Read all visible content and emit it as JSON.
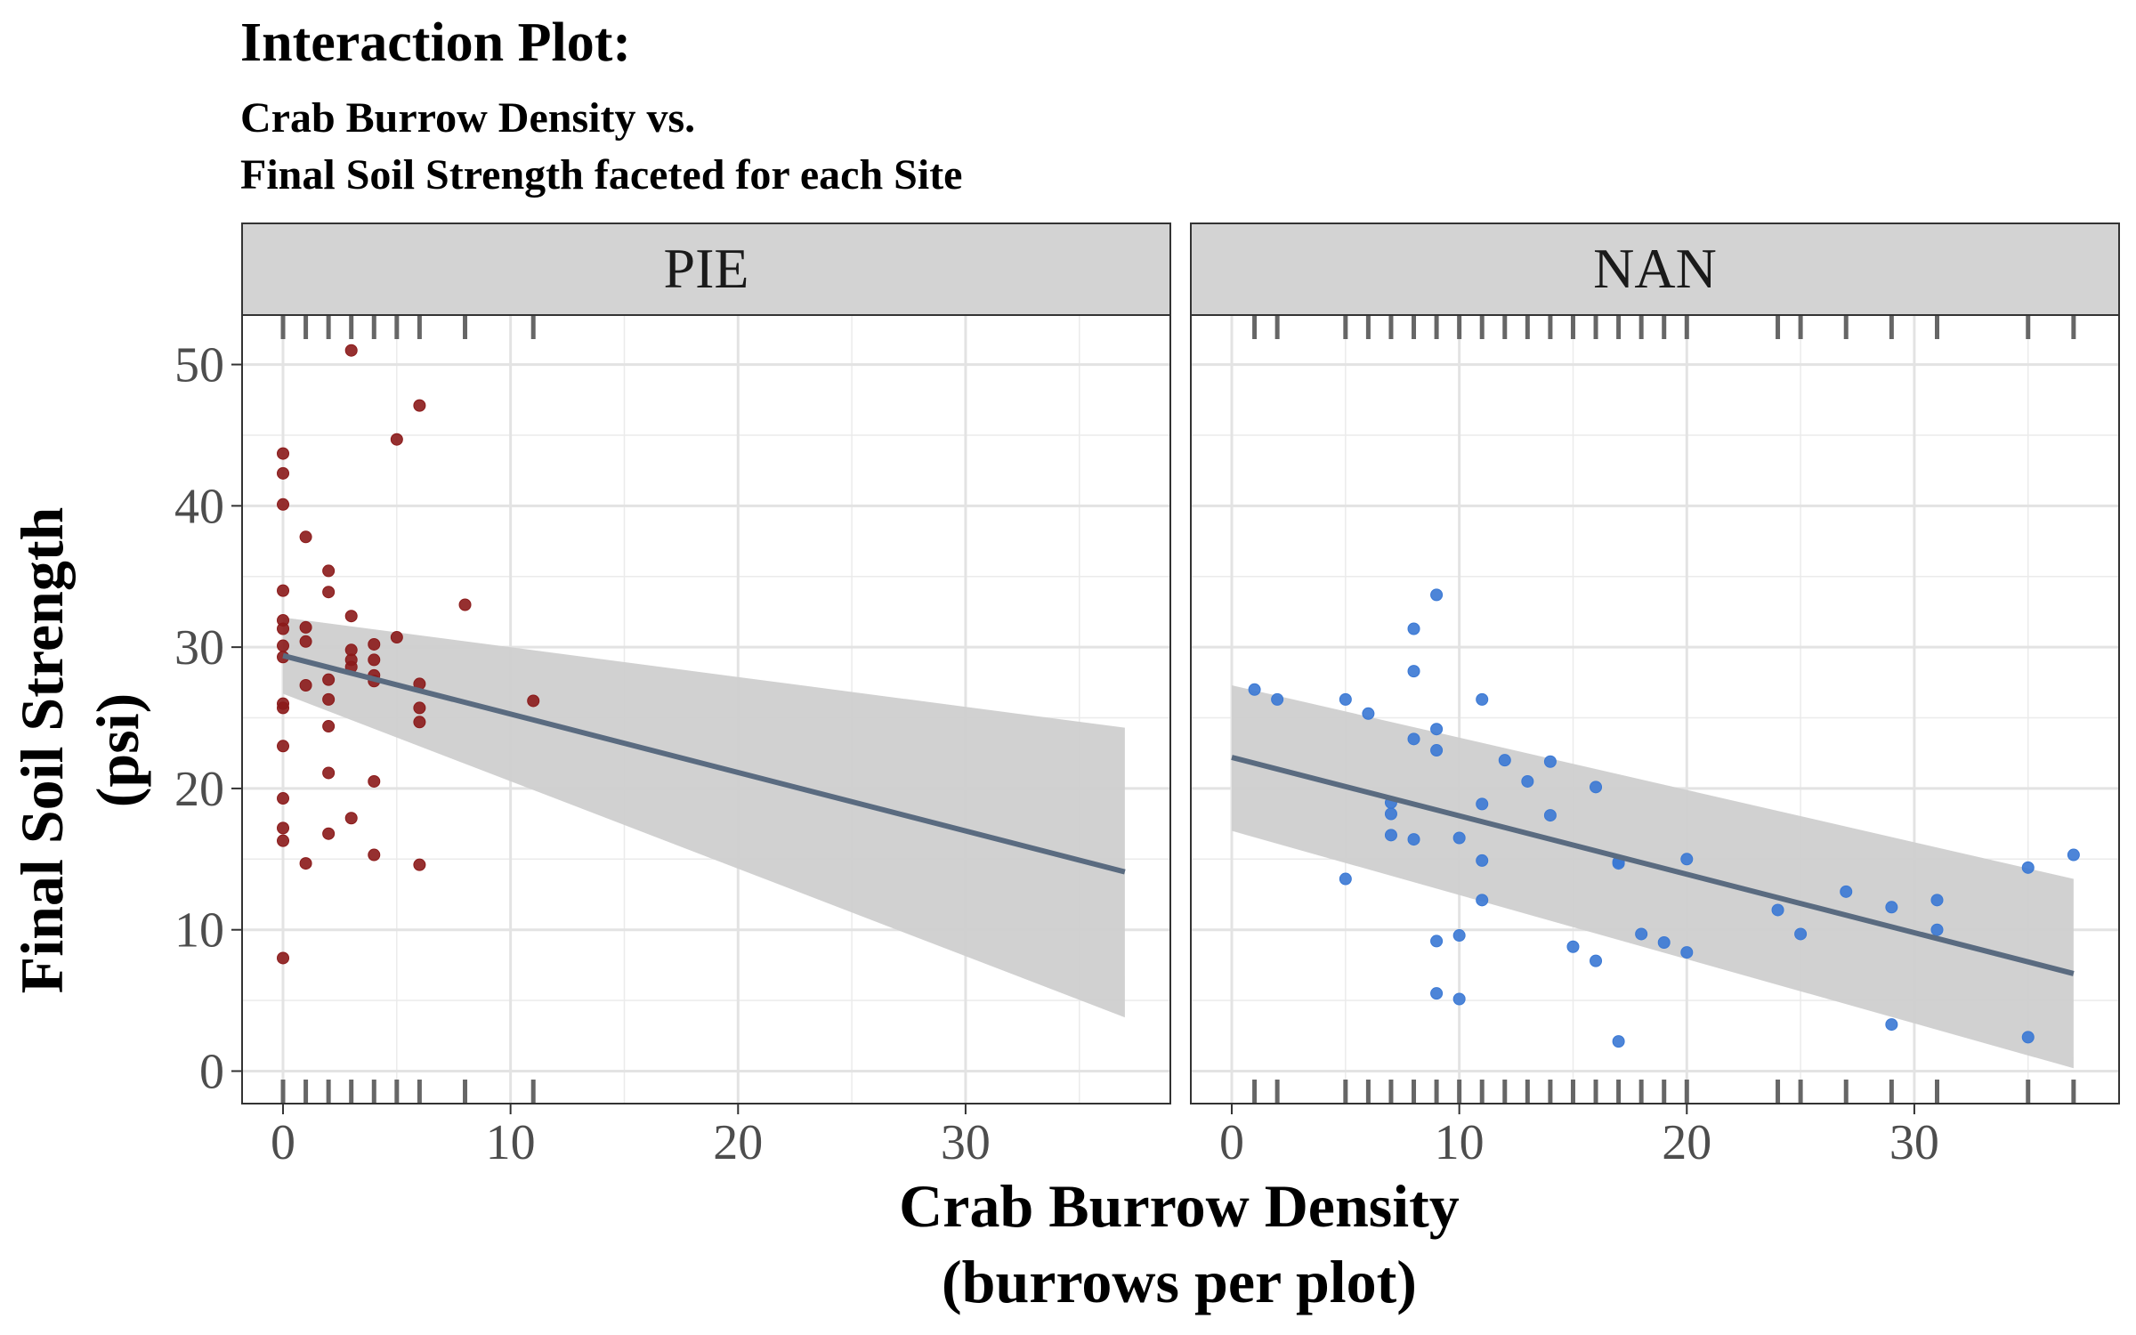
{
  "title": "Interaction Plot:",
  "subtitle_lines": [
    "Crab Burrow Density vs.",
    "Final Soil Strength faceted for each Site"
  ],
  "chart_data": {
    "type": "scatter",
    "xlabel_lines": [
      "Crab Burrow Density",
      "(burrows per plot)"
    ],
    "ylabel_lines": [
      "Final Soil Strength",
      "(psi)"
    ],
    "xlim": [
      -1.8,
      39
    ],
    "ylim": [
      -2.3,
      53.5
    ],
    "x_ticks": [
      0,
      10,
      20,
      30
    ],
    "y_ticks": [
      0,
      10,
      20,
      30,
      40,
      50
    ],
    "grid": true,
    "legend": "none",
    "colors": {
      "PIE": "#8b1a1a",
      "NAN": "#3a78d4",
      "fit_line": "#5a6b80",
      "ribbon": "#cfcfcf",
      "strip_bg": "#d3d3d3",
      "rug": "#666666"
    },
    "facets": [
      {
        "name": "PIE",
        "fit": {
          "x": [
            0,
            37
          ],
          "y": [
            29.4,
            14.1
          ],
          "lower": [
            26.7,
            3.8
          ],
          "upper": [
            32.1,
            24.3
          ]
        },
        "points": [
          {
            "x": 0,
            "y": 43.7
          },
          {
            "x": 0,
            "y": 42.3
          },
          {
            "x": 0,
            "y": 40.1
          },
          {
            "x": 0,
            "y": 34.0
          },
          {
            "x": 0,
            "y": 31.9
          },
          {
            "x": 0,
            "y": 31.3
          },
          {
            "x": 0,
            "y": 30.1
          },
          {
            "x": 0,
            "y": 29.3
          },
          {
            "x": 0,
            "y": 26.0
          },
          {
            "x": 0,
            "y": 25.7
          },
          {
            "x": 0,
            "y": 23.0
          },
          {
            "x": 0,
            "y": 19.3
          },
          {
            "x": 0,
            "y": 17.2
          },
          {
            "x": 0,
            "y": 16.3
          },
          {
            "x": 0,
            "y": 8.0
          },
          {
            "x": 1,
            "y": 37.8
          },
          {
            "x": 1,
            "y": 31.4
          },
          {
            "x": 1,
            "y": 30.4
          },
          {
            "x": 1,
            "y": 27.3
          },
          {
            "x": 1,
            "y": 14.7
          },
          {
            "x": 2,
            "y": 35.4
          },
          {
            "x": 2,
            "y": 33.9
          },
          {
            "x": 2,
            "y": 27.7
          },
          {
            "x": 2,
            "y": 26.3
          },
          {
            "x": 2,
            "y": 24.4
          },
          {
            "x": 2,
            "y": 21.1
          },
          {
            "x": 2,
            "y": 16.8
          },
          {
            "x": 3,
            "y": 51.0
          },
          {
            "x": 3,
            "y": 32.2
          },
          {
            "x": 3,
            "y": 29.8
          },
          {
            "x": 3,
            "y": 29.1
          },
          {
            "x": 3,
            "y": 28.6
          },
          {
            "x": 3,
            "y": 17.9
          },
          {
            "x": 4,
            "y": 30.2
          },
          {
            "x": 4,
            "y": 29.1
          },
          {
            "x": 4,
            "y": 28.0
          },
          {
            "x": 4,
            "y": 27.6
          },
          {
            "x": 4,
            "y": 20.5
          },
          {
            "x": 4,
            "y": 15.3
          },
          {
            "x": 5,
            "y": 44.7
          },
          {
            "x": 5,
            "y": 30.7
          },
          {
            "x": 6,
            "y": 47.1
          },
          {
            "x": 6,
            "y": 27.4
          },
          {
            "x": 6,
            "y": 25.7
          },
          {
            "x": 6,
            "y": 24.7
          },
          {
            "x": 6,
            "y": 14.6
          },
          {
            "x": 8,
            "y": 33.0
          },
          {
            "x": 11,
            "y": 26.2
          }
        ]
      },
      {
        "name": "NAN",
        "fit": {
          "x": [
            0,
            37
          ],
          "y": [
            22.2,
            6.9
          ],
          "lower": [
            17.0,
            0.2
          ],
          "upper": [
            27.3,
            13.6
          ]
        },
        "points": [
          {
            "x": 1,
            "y": 27.0
          },
          {
            "x": 2,
            "y": 26.3
          },
          {
            "x": 5,
            "y": 26.3
          },
          {
            "x": 5,
            "y": 13.6
          },
          {
            "x": 6,
            "y": 25.3
          },
          {
            "x": 7,
            "y": 19.0
          },
          {
            "x": 7,
            "y": 18.2
          },
          {
            "x": 7,
            "y": 16.7
          },
          {
            "x": 8,
            "y": 31.3
          },
          {
            "x": 8,
            "y": 28.3
          },
          {
            "x": 8,
            "y": 23.5
          },
          {
            "x": 8,
            "y": 16.4
          },
          {
            "x": 9,
            "y": 33.7
          },
          {
            "x": 9,
            "y": 24.2
          },
          {
            "x": 9,
            "y": 22.7
          },
          {
            "x": 9,
            "y": 9.2
          },
          {
            "x": 9,
            "y": 5.5
          },
          {
            "x": 10,
            "y": 16.5
          },
          {
            "x": 10,
            "y": 9.6
          },
          {
            "x": 10,
            "y": 5.1
          },
          {
            "x": 11,
            "y": 26.3
          },
          {
            "x": 11,
            "y": 18.9
          },
          {
            "x": 11,
            "y": 14.9
          },
          {
            "x": 11,
            "y": 12.1
          },
          {
            "x": 12,
            "y": 22.0
          },
          {
            "x": 13,
            "y": 20.5
          },
          {
            "x": 14,
            "y": 21.9
          },
          {
            "x": 14,
            "y": 18.1
          },
          {
            "x": 15,
            "y": 8.8
          },
          {
            "x": 16,
            "y": 20.1
          },
          {
            "x": 16,
            "y": 7.8
          },
          {
            "x": 17,
            "y": 14.8
          },
          {
            "x": 17,
            "y": 14.7
          },
          {
            "x": 17,
            "y": 2.1
          },
          {
            "x": 18,
            "y": 9.7
          },
          {
            "x": 19,
            "y": 9.1
          },
          {
            "x": 20,
            "y": 15.0
          },
          {
            "x": 20,
            "y": 8.4
          },
          {
            "x": 24,
            "y": 11.4
          },
          {
            "x": 25,
            "y": 9.7
          },
          {
            "x": 27,
            "y": 12.7
          },
          {
            "x": 29,
            "y": 11.6
          },
          {
            "x": 29,
            "y": 3.3
          },
          {
            "x": 31,
            "y": 12.1
          },
          {
            "x": 31,
            "y": 10.0
          },
          {
            "x": 35,
            "y": 14.4
          },
          {
            "x": 35,
            "y": 2.4
          },
          {
            "x": 37,
            "y": 15.3
          }
        ]
      }
    ]
  }
}
